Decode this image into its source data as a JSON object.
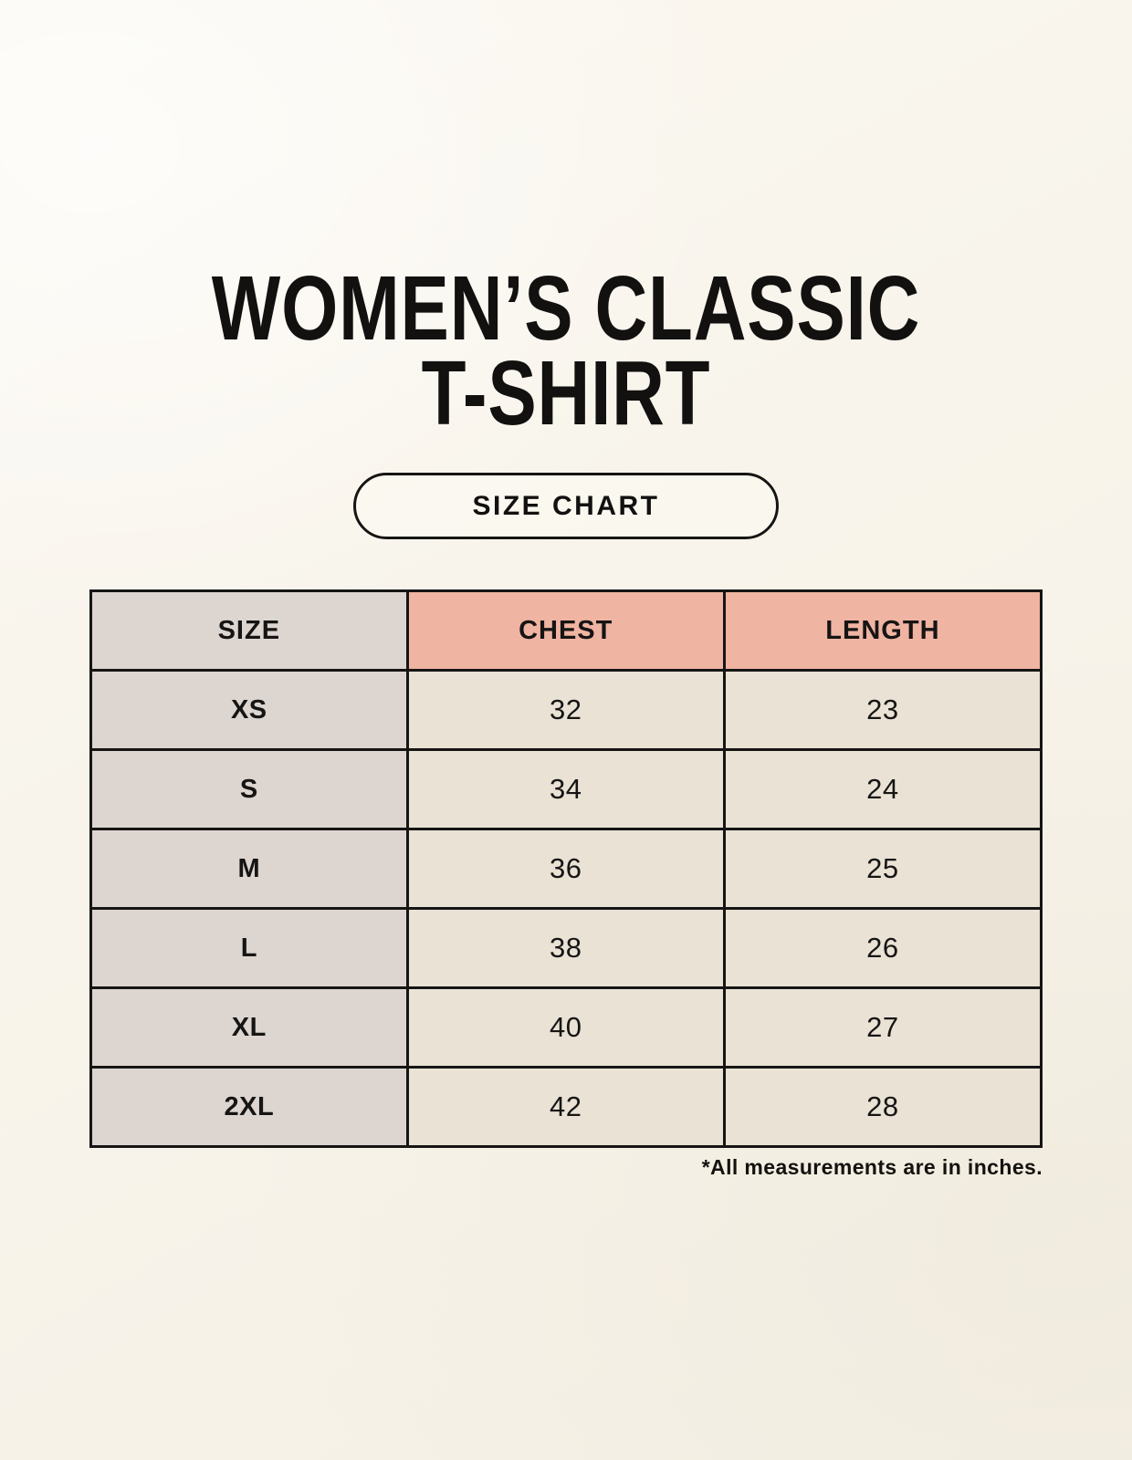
{
  "page": {
    "title_line1": "WOMEN’S CLASSIC",
    "title_line2": "T-SHIRT",
    "size_chart_label": "SIZE CHART",
    "footnote": "*All measurements are in inches."
  },
  "colors": {
    "background": "#f8f4eb",
    "text": "#161514",
    "table_border": "#161514",
    "size_column_bg": "#dcd5d0",
    "measure_header_bg": "#f0b4a2",
    "data_cell_bg": "#e9e2d5"
  },
  "table": {
    "columns": [
      "SIZE",
      "CHEST",
      "LENGTH"
    ],
    "rows": [
      [
        "XS",
        "32",
        "23"
      ],
      [
        "S",
        "34",
        "24"
      ],
      [
        "M",
        "36",
        "25"
      ],
      [
        "L",
        "38",
        "26"
      ],
      [
        "XL",
        "40",
        "27"
      ],
      [
        "2XL",
        "42",
        "28"
      ]
    ]
  }
}
